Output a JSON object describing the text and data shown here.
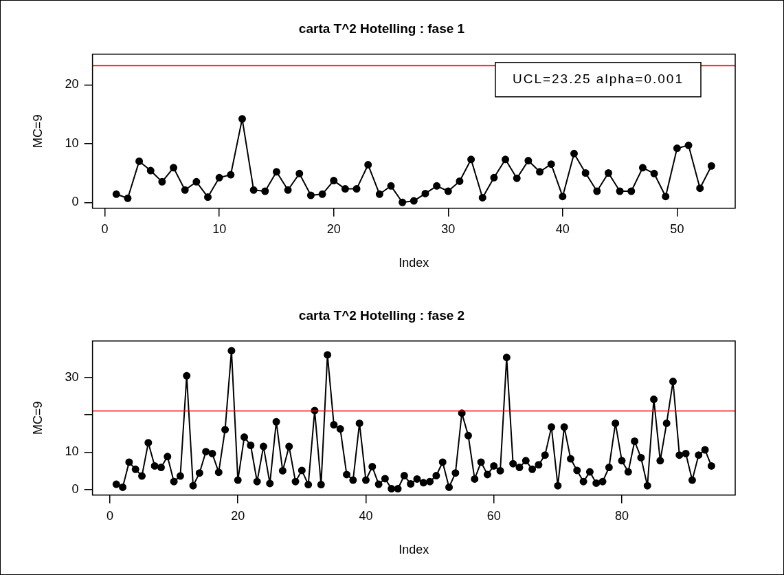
{
  "chart_data": [
    {
      "type": "line",
      "title": "carta T^2 Hotelling : fase 1",
      "xlabel": "Index",
      "ylabel": "MC=9",
      "marker": "circle",
      "line_style": "solid",
      "grid": false,
      "x": [
        1,
        2,
        3,
        4,
        5,
        6,
        7,
        8,
        9,
        10,
        11,
        12,
        13,
        14,
        15,
        16,
        17,
        18,
        19,
        20,
        21,
        22,
        23,
        24,
        25,
        26,
        27,
        28,
        29,
        30,
        31,
        32,
        33,
        34,
        35,
        36,
        37,
        38,
        39,
        40,
        41,
        42,
        43,
        44,
        45,
        46,
        47,
        48,
        49,
        50,
        51,
        52,
        53
      ],
      "xlim": [
        -1.08,
        55.08
      ],
      "xticks": [
        0,
        10,
        20,
        30,
        40,
        50
      ],
      "ylim": [
        -1,
        25.2
      ],
      "yticks": [
        0,
        10,
        20
      ],
      "series": [
        {
          "color": "#000000",
          "values": [
            1.4,
            0.7,
            7.0,
            5.4,
            3.5,
            5.9,
            2.1,
            3.5,
            0.9,
            4.2,
            4.7,
            14.2,
            2.1,
            1.9,
            5.2,
            2.1,
            4.9,
            1.2,
            1.4,
            3.7,
            2.3,
            2.3,
            6.4,
            1.4,
            2.8,
            0,
            0.25,
            1.5,
            2.8,
            1.9,
            3.6,
            7.3,
            0.8,
            4.2,
            7.3,
            4.1,
            7.1,
            5.2,
            6.5,
            1.0,
            8.3,
            5.0,
            1.9,
            5.0,
            1.9,
            1.9,
            5.9,
            4.9,
            1.0,
            9.2,
            9.7,
            2.4,
            6.2
          ]
        }
      ],
      "ref_lines": [
        {
          "axis": "y",
          "value": 23.25,
          "color": "#ff0000"
        }
      ],
      "annotations": [
        "UCL=23.25 alpha=0.001"
      ]
    },
    {
      "type": "line",
      "title": "carta T^2 Hotelling : fase 2",
      "xlabel": "Index",
      "ylabel": "MC=9",
      "marker": "circle",
      "line_style": "solid",
      "grid": false,
      "x": [
        1,
        2,
        3,
        4,
        5,
        6,
        7,
        8,
        9,
        10,
        11,
        12,
        13,
        14,
        15,
        16,
        17,
        18,
        19,
        20,
        21,
        22,
        23,
        24,
        25,
        26,
        27,
        28,
        29,
        30,
        31,
        32,
        33,
        34,
        35,
        36,
        37,
        38,
        39,
        40,
        41,
        42,
        43,
        44,
        45,
        46,
        47,
        48,
        49,
        50,
        51,
        52,
        53,
        54,
        55,
        56,
        57,
        58,
        59,
        60,
        61,
        62,
        63,
        64,
        65,
        66,
        67,
        68,
        69,
        70,
        71,
        72,
        73,
        74,
        75,
        76,
        77,
        78,
        79,
        80,
        81,
        82,
        83,
        84,
        85,
        86,
        87,
        88,
        89,
        90,
        91,
        92,
        93,
        94
      ],
      "xlim": [
        -2.72,
        97.72
      ],
      "xticks": [
        0,
        20,
        40,
        60,
        80
      ],
      "ylim": [
        -1.5,
        39.7
      ],
      "yticks": [
        0,
        10,
        {
          "value": 20,
          "label": null
        },
        30
      ],
      "series": [
        {
          "color": "#000000",
          "values": [
            1.4,
            0.6,
            7.3,
            5.4,
            3.6,
            12.5,
            6.3,
            5.9,
            8.8,
            2.1,
            3.6,
            30.4,
            1.0,
            4.4,
            10.1,
            9.6,
            4.6,
            16.0,
            37.1,
            2.5,
            14.0,
            11.8,
            2.1,
            11.5,
            1.6,
            18.1,
            5.0,
            11.5,
            2.1,
            5.1,
            1.3,
            21.1,
            1.3,
            36.0,
            17.3,
            16.2,
            4.0,
            2.5,
            17.7,
            2.5,
            6.1,
            1.4,
            2.9,
            0.2,
            0.2,
            3.7,
            1.5,
            2.8,
            1.8,
            2.1,
            3.7,
            7.3,
            0.6,
            4.4,
            20.4,
            14.4,
            2.8,
            7.3,
            4.0,
            6.3,
            5.0,
            35.3,
            6.9,
            5.9,
            7.7,
            5.4,
            6.6,
            9.2,
            16.7,
            1.0,
            16.7,
            8.2,
            5.1,
            2.1,
            4.7,
            1.7,
            2.1,
            5.9,
            17.7,
            7.7,
            4.7,
            12.9,
            8.5,
            1.0,
            24.1,
            7.7,
            17.7,
            28.9,
            9.2,
            9.6,
            2.5,
            9.2,
            10.6,
            6.3
          ]
        }
      ],
      "ref_lines": [
        {
          "axis": "y",
          "value": 21.0,
          "color": "#ff0000"
        }
      ]
    }
  ]
}
